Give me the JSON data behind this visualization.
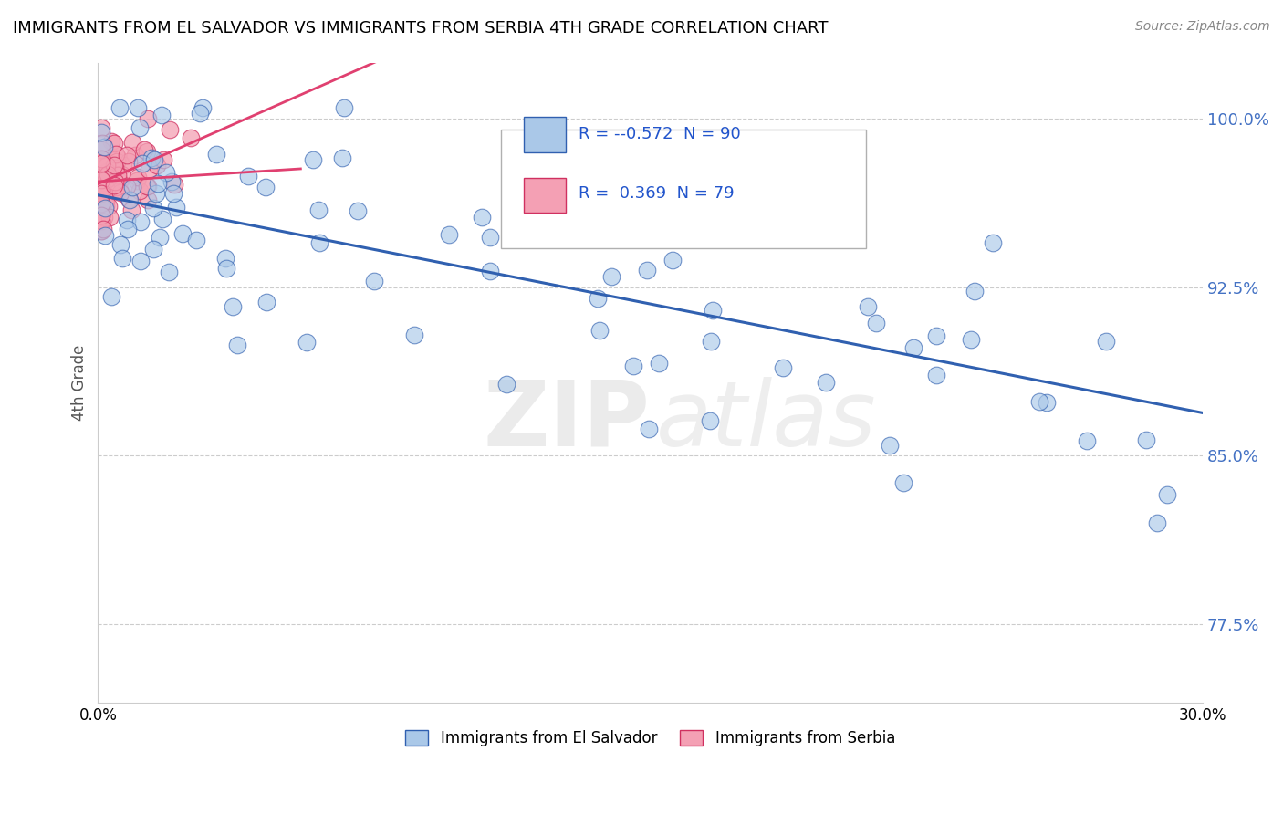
{
  "title": "IMMIGRANTS FROM EL SALVADOR VS IMMIGRANTS FROM SERBIA 4TH GRADE CORRELATION CHART",
  "source": "Source: ZipAtlas.com",
  "ylabel": "4th Grade",
  "ytick_labels": [
    "77.5%",
    "85.0%",
    "92.5%",
    "100.0%"
  ],
  "ytick_values": [
    0.775,
    0.85,
    0.925,
    1.0
  ],
  "xmin": 0.0,
  "xmax": 0.3,
  "ymin": 0.74,
  "ymax": 1.025,
  "color_salvador": "#aac8e8",
  "color_serbia": "#f4a0b4",
  "trendline_color_salvador": "#3060b0",
  "trendline_color_serbia": "#e04070",
  "legend_label1": "Immigrants from El Salvador",
  "legend_label2": "Immigrants from Serbia",
  "legend_r1_val": "-0.572",
  "legend_n1_val": "90",
  "legend_r2_val": "0.369",
  "legend_n2_val": "79"
}
